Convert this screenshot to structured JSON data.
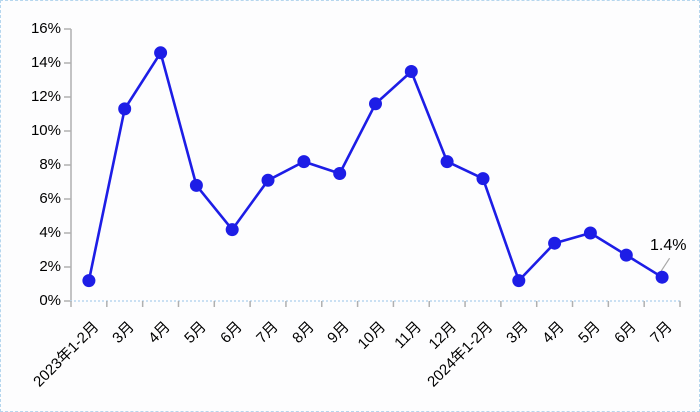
{
  "chart_data": {
    "type": "line",
    "title": "",
    "categories": [
      "2023年1-2月",
      "3月",
      "4月",
      "5月",
      "6月",
      "7月",
      "8月",
      "9月",
      "10月",
      "11月",
      "12月",
      "2024年1-2月",
      "3月",
      "4月",
      "5月",
      "6月",
      "7月"
    ],
    "values": [
      1.2,
      11.3,
      14.6,
      6.8,
      4.2,
      7.1,
      8.2,
      7.5,
      11.6,
      13.5,
      8.2,
      7.2,
      1.2,
      3.4,
      4.0,
      2.7,
      1.4
    ],
    "unit": "%",
    "xlabel": "",
    "ylabel": "",
    "ylim": [
      0,
      16
    ],
    "ytick_step": 2,
    "ytick_labels": [
      "0%",
      "2%",
      "4%",
      "6%",
      "8%",
      "10%",
      "12%",
      "14%",
      "16%"
    ],
    "grid": false,
    "legend": false,
    "marker": "circle",
    "annotation": {
      "text": "1.4%",
      "index": 16
    }
  },
  "colors": {
    "line": "#1d1de6",
    "marker": "#1d1de6",
    "axis": "#b0b0b0",
    "baseline_dotted": "#b9d7ef",
    "border": "#b5d6ee",
    "background": "#fdfdfe",
    "text": "#000000",
    "leader_line": "#a8a8a8"
  }
}
